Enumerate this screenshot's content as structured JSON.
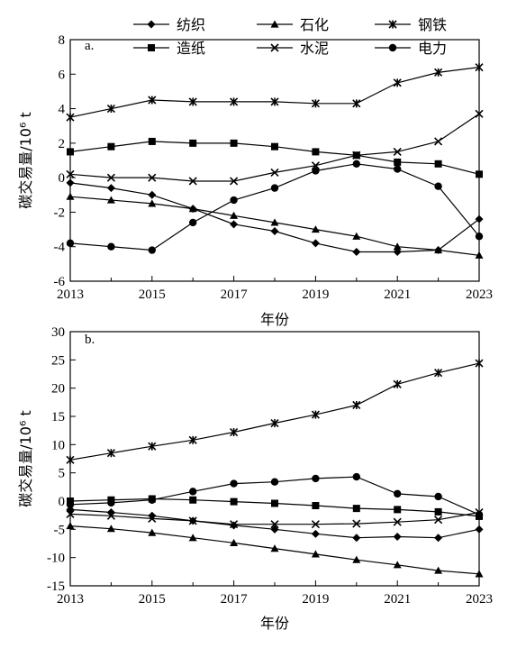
{
  "chart_data": [
    {
      "panel": "a.",
      "type": "line",
      "xlabel": "年份",
      "ylabel": "碳交易量/10⁶ t",
      "xlim": [
        2013,
        2023
      ],
      "ylim": [
        -6,
        8
      ],
      "x_ticks": [
        2013,
        2015,
        2017,
        2019,
        2021,
        2023
      ],
      "y_ticks": [
        -6,
        -4,
        -2,
        0,
        2,
        4,
        6,
        8
      ],
      "x": [
        2013,
        2014,
        2015,
        2016,
        2017,
        2018,
        2019,
        2020,
        2021,
        2022,
        2023
      ],
      "series": [
        {
          "name": "纺织",
          "marker": "diamond",
          "values": [
            -0.3,
            -0.6,
            -1.0,
            -1.8,
            -2.7,
            -3.1,
            -3.8,
            -4.3,
            -4.3,
            -4.2,
            -2.4
          ]
        },
        {
          "name": "石化",
          "marker": "triangle",
          "values": [
            -1.1,
            -1.3,
            -1.5,
            -1.8,
            -2.2,
            -2.6,
            -3.0,
            -3.4,
            -4.0,
            -4.2,
            -4.5
          ]
        },
        {
          "name": "钢铁",
          "marker": "asterisk",
          "values": [
            3.5,
            4.0,
            4.5,
            4.4,
            4.4,
            4.4,
            4.3,
            4.3,
            5.5,
            6.1,
            6.4
          ]
        },
        {
          "name": "造纸",
          "marker": "square",
          "values": [
            1.5,
            1.8,
            2.1,
            2.0,
            2.0,
            1.8,
            1.5,
            1.3,
            0.9,
            0.8,
            0.2
          ]
        },
        {
          "name": "水泥",
          "marker": "x",
          "values": [
            0.2,
            0.0,
            0.0,
            -0.2,
            -0.2,
            0.3,
            0.7,
            1.3,
            1.5,
            2.1,
            3.7
          ]
        },
        {
          "name": "电力",
          "marker": "circle",
          "values": [
            -3.8,
            -4.0,
            -4.2,
            -2.6,
            -1.3,
            -0.6,
            0.4,
            0.8,
            0.5,
            -0.5,
            -3.4
          ]
        }
      ]
    },
    {
      "panel": "b.",
      "type": "line",
      "xlabel": "年份",
      "ylabel": "碳交易量/10⁶ t",
      "xlim": [
        2013,
        2023
      ],
      "ylim": [
        -15,
        30
      ],
      "x_ticks": [
        2013,
        2015,
        2017,
        2019,
        2021,
        2023
      ],
      "y_ticks": [
        -15,
        -10,
        -5,
        0,
        5,
        10,
        15,
        20,
        25,
        30
      ],
      "x": [
        2013,
        2014,
        2015,
        2016,
        2017,
        2018,
        2019,
        2020,
        2021,
        2022,
        2023
      ],
      "series": [
        {
          "name": "纺织",
          "marker": "diamond",
          "values": [
            -1.5,
            -2.0,
            -2.6,
            -3.5,
            -4.3,
            -5.0,
            -5.8,
            -6.5,
            -6.3,
            -6.5,
            -5.0
          ]
        },
        {
          "name": "石化",
          "marker": "triangle",
          "values": [
            -4.4,
            -4.9,
            -5.6,
            -6.5,
            -7.4,
            -8.4,
            -9.4,
            -10.4,
            -11.3,
            -12.3,
            -12.9
          ]
        },
        {
          "name": "钢铁",
          "marker": "asterisk",
          "values": [
            7.3,
            8.5,
            9.7,
            10.8,
            12.2,
            13.8,
            15.3,
            17.0,
            20.7,
            22.7,
            24.4
          ]
        },
        {
          "name": "造纸",
          "marker": "square",
          "values": [
            0.0,
            0.2,
            0.4,
            0.2,
            -0.1,
            -0.4,
            -0.8,
            -1.3,
            -1.5,
            -1.9,
            -2.7
          ]
        },
        {
          "name": "水泥",
          "marker": "x",
          "values": [
            -2.3,
            -2.6,
            -3.1,
            -3.5,
            -4.1,
            -4.1,
            -4.1,
            -4.0,
            -3.7,
            -3.3,
            -2.0
          ]
        },
        {
          "name": "电力",
          "marker": "circle",
          "values": [
            -0.6,
            -0.3,
            0.2,
            1.7,
            3.1,
            3.4,
            4.0,
            4.3,
            1.3,
            0.8,
            -2.4
          ]
        }
      ]
    }
  ],
  "legend": [
    {
      "name": "纺织",
      "marker": "diamond"
    },
    {
      "name": "石化",
      "marker": "triangle"
    },
    {
      "name": "钢铁",
      "marker": "asterisk"
    },
    {
      "name": "造纸",
      "marker": "square"
    },
    {
      "name": "水泥",
      "marker": "x"
    },
    {
      "name": "电力",
      "marker": "circle"
    }
  ],
  "colors": {
    "line": "#000000",
    "background": "#ffffff"
  }
}
